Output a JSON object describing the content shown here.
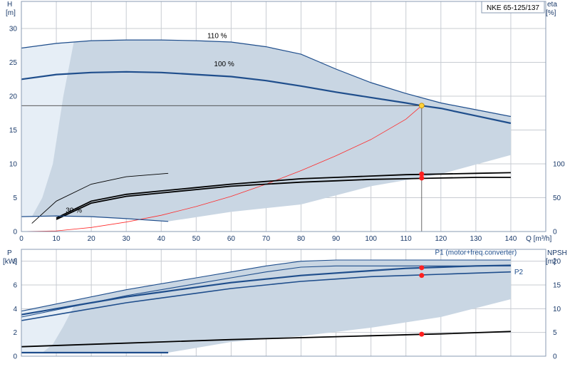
{
  "model_label": "NKE 65-125/137",
  "colors": {
    "curve": "#1f4e8c",
    "region": "#c9d6e3",
    "region_light": "#e6eef6",
    "system": "#ff2a2a",
    "duty_marker": "#ffd23a",
    "marker": "#ff2020",
    "axis_text": "#1a3a6a"
  },
  "chart_data": [
    {
      "type": "line",
      "panel": "head-efficiency",
      "title": "",
      "xlabel": "Q [m³/h]",
      "ylabel": "H [m]",
      "y2label": "eta [%]",
      "ylabel_name": "H",
      "ylabel_unit": "[m]",
      "y2label_name": "eta",
      "y2label_unit": "[%]",
      "xlim": [
        0,
        150
      ],
      "ylim": [
        0,
        34
      ],
      "y2lim": [
        0,
        100
      ],
      "y2_axis_top_h": 10,
      "xticks": [
        0,
        10,
        20,
        30,
        40,
        50,
        60,
        70,
        80,
        90,
        100,
        110,
        120,
        130,
        140
      ],
      "yticks": [
        0,
        5,
        10,
        15,
        20,
        25,
        30
      ],
      "y2ticks": [
        0,
        50,
        100
      ],
      "grid": true,
      "series": [
        {
          "label": "110 %",
          "label_at": [
            56,
            28.6
          ],
          "role": "speed-110",
          "x": [
            0,
            10,
            20,
            30,
            40,
            50,
            60,
            70,
            80,
            90,
            100,
            110,
            120,
            130,
            140
          ],
          "y": [
            27.1,
            27.8,
            28.2,
            28.3,
            28.3,
            28.2,
            28.0,
            27.3,
            26.2,
            24.0,
            22.0,
            20.4,
            19.0,
            18.0,
            17.0
          ]
        },
        {
          "label": "100 %",
          "label_at": [
            58,
            24.4
          ],
          "role": "speed-100",
          "x": [
            0,
            10,
            20,
            30,
            40,
            50,
            60,
            70,
            80,
            90,
            100,
            110,
            114.5,
            120,
            130,
            140
          ],
          "y": [
            22.5,
            23.2,
            23.5,
            23.6,
            23.5,
            23.2,
            22.9,
            22.3,
            21.5,
            20.6,
            19.8,
            19.0,
            18.6,
            18.2,
            17.1,
            16.0
          ]
        },
        {
          "label": "",
          "role": "system-curve",
          "x": [
            0,
            10,
            20,
            30,
            40,
            50,
            60,
            70,
            80,
            90,
            100,
            110,
            114.5
          ],
          "y": [
            0,
            0.1,
            0.6,
            1.4,
            2.4,
            3.7,
            5.2,
            7.0,
            9.0,
            11.2,
            13.6,
            16.6,
            18.6
          ]
        },
        {
          "label": "",
          "role": "eta-110",
          "x": [
            10,
            20,
            30,
            40,
            50,
            60,
            70,
            80,
            90,
            100,
            110,
            120,
            130,
            140
          ],
          "y": [
            2.0,
            4.5,
            5.5,
            6.0,
            6.5,
            7.0,
            7.4,
            7.8,
            8.0,
            8.2,
            8.4,
            8.5,
            8.6,
            8.7
          ]
        },
        {
          "label": "",
          "role": "eta-100",
          "x": [
            10,
            20,
            30,
            40,
            50,
            60,
            70,
            80,
            90,
            100,
            110,
            120,
            130,
            140
          ],
          "y": [
            1.8,
            4.2,
            5.2,
            5.7,
            6.2,
            6.7,
            7.0,
            7.3,
            7.5,
            7.7,
            7.8,
            7.9,
            8.0,
            8.0
          ]
        },
        {
          "label": "",
          "role": "eta-reduced",
          "x": [
            3,
            10,
            20,
            30,
            42
          ],
          "y": [
            1.2,
            4.5,
            7.0,
            8.1,
            8.6
          ]
        },
        {
          "label": "",
          "role": "min-speed",
          "x": [
            0,
            10,
            20,
            30,
            42
          ],
          "y": [
            2.2,
            2.3,
            2.2,
            1.9,
            1.5
          ]
        }
      ],
      "min_speed_label": {
        "text": "30 %",
        "at": [
          15,
          2.8
        ]
      },
      "duty_point": {
        "x": 114.5,
        "y": 18.6
      },
      "markers": [
        {
          "x": 114.5,
          "y": 8.5
        },
        {
          "x": 114.5,
          "y": 7.9
        }
      ]
    },
    {
      "type": "line",
      "panel": "power-npsh",
      "title": "",
      "xlabel": "",
      "ylabel": "P [kW]",
      "y2label": "NPSH [m]",
      "ylabel_name": "P",
      "ylabel_unit": "[kW]",
      "y2label_name": "NPSH",
      "y2label_unit": "[m]",
      "xlim": [
        0,
        150
      ],
      "ylim": [
        0,
        9
      ],
      "y2lim": [
        0,
        22.5
      ],
      "yticks": [
        0,
        2,
        4,
        6,
        8
      ],
      "y2ticks": [
        0,
        5,
        10,
        15,
        20
      ],
      "grid": true,
      "series": [
        {
          "label": "P1 (motor+freq.converter)",
          "label_at": [
            130,
            8.55
          ],
          "role": "p1",
          "x": [
            0,
            10,
            20,
            30,
            40,
            50,
            60,
            70,
            80,
            90,
            100,
            110,
            120,
            130,
            140
          ],
          "y": [
            3.5,
            4.0,
            4.5,
            5.0,
            5.4,
            5.8,
            6.2,
            6.5,
            6.8,
            7.0,
            7.2,
            7.4,
            7.5,
            7.6,
            7.65
          ]
        },
        {
          "label": "P2",
          "label_at": [
            141,
            6.9
          ],
          "role": "p2",
          "x": [
            0,
            10,
            20,
            30,
            40,
            50,
            60,
            70,
            80,
            90,
            100,
            110,
            120,
            130,
            140
          ],
          "y": [
            3.0,
            3.5,
            4.0,
            4.5,
            4.9,
            5.3,
            5.7,
            6.0,
            6.3,
            6.5,
            6.7,
            6.8,
            6.9,
            7.0,
            7.1
          ]
        },
        {
          "label": "",
          "role": "p1-110",
          "x": [
            0,
            10,
            20,
            30,
            40,
            50,
            60,
            70,
            80,
            90,
            100,
            110,
            120,
            130,
            140
          ],
          "y": [
            3.8,
            4.4,
            5.0,
            5.6,
            6.1,
            6.6,
            7.1,
            7.6,
            8.0,
            8.1,
            8.1,
            8.1,
            8.1,
            8.1,
            8.1
          ]
        },
        {
          "label": "",
          "role": "p2-110",
          "x": [
            0,
            10,
            20,
            30,
            40,
            50,
            60,
            70,
            80,
            90,
            100,
            110,
            120,
            130,
            140
          ],
          "y": [
            3.3,
            3.9,
            4.5,
            5.1,
            5.6,
            6.1,
            6.6,
            7.1,
            7.5,
            7.6,
            7.6,
            7.6,
            7.6,
            7.6,
            7.6
          ]
        },
        {
          "label": "",
          "role": "npsh",
          "axis": "y2",
          "x": [
            0,
            20,
            40,
            60,
            80,
            100,
            114.5,
            120,
            140
          ],
          "y": [
            2.0,
            2.5,
            3.0,
            3.5,
            3.9,
            4.3,
            4.6,
            4.7,
            5.2
          ]
        },
        {
          "label": "",
          "role": "p-min",
          "x": [
            0,
            20,
            42
          ],
          "y": [
            0.3,
            0.3,
            0.3
          ]
        }
      ],
      "markers": [
        {
          "x": 114.5,
          "y": 7.45
        },
        {
          "x": 114.5,
          "y": 6.8
        },
        {
          "x": 114.5,
          "y": 1.85
        }
      ]
    }
  ]
}
